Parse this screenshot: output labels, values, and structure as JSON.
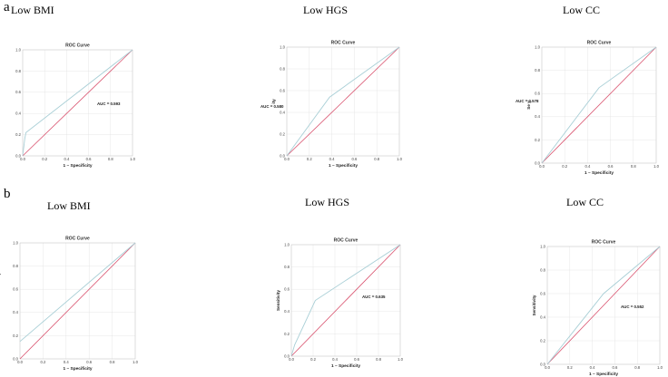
{
  "panel_labels": [
    "a",
    "b"
  ],
  "column_titles": [
    "Low BMI",
    "Low HGS",
    "Low CC"
  ],
  "colors": {
    "roc_line": "#a9cfd6",
    "reference_line": "#d9526e"
  },
  "chart_data": [
    {
      "type": "line",
      "row": "a",
      "col": 0,
      "title": "ROC Curve",
      "xlabel": "1 – Specificity",
      "ylabel": "",
      "auc_label": "AUC = 0.593",
      "xticks": [
        "0.0",
        "0.2",
        "0.4",
        "0.6",
        "0.8",
        "1.0"
      ],
      "yticks": [
        "0.0",
        "0.2",
        "0.4",
        "0.6",
        "0.8",
        "1.0"
      ],
      "xlim": [
        0,
        1
      ],
      "ylim": [
        0,
        1
      ],
      "grid": true,
      "roc": {
        "x": [
          0,
          0.02,
          0.03,
          1.0
        ],
        "y": [
          0,
          0.17,
          0.22,
          1.0
        ]
      },
      "reference": {
        "x": [
          0,
          1
        ],
        "y": [
          0,
          1
        ]
      }
    },
    {
      "type": "line",
      "row": "a",
      "col": 1,
      "title": "ROC Curve",
      "xlabel": "1 – Specificity",
      "ylabel": "ity",
      "auc_label": "AUC = 0.580",
      "xticks": [
        "0.0",
        "0.2",
        "0.4",
        "0.6",
        "0.8",
        "1.0"
      ],
      "yticks": [
        "0.0",
        "0.2",
        "0.4",
        "0.6",
        "0.8",
        "1.0"
      ],
      "xlim": [
        0,
        1
      ],
      "ylim": [
        0,
        1
      ],
      "grid": true,
      "roc": {
        "x": [
          0,
          0.38,
          1.0
        ],
        "y": [
          0,
          0.54,
          1.0
        ]
      },
      "reference": {
        "x": [
          0,
          1
        ],
        "y": [
          0,
          1
        ]
      }
    },
    {
      "type": "line",
      "row": "a",
      "col": 2,
      "title": "ROC Curve",
      "xlabel": "1 – Specificity",
      "ylabel": "Se   y",
      "auc_label": "AUC = 0.578",
      "xticks": [
        "0.0",
        "0.2",
        "0.4",
        "0.6",
        "0.8",
        "1.0"
      ],
      "yticks": [
        "0.0",
        "0.2",
        "0.4",
        "0.6",
        "0.8",
        "1.0"
      ],
      "xlim": [
        0,
        1
      ],
      "ylim": [
        0,
        1
      ],
      "grid": true,
      "roc": {
        "x": [
          0,
          0.5,
          1.0
        ],
        "y": [
          0,
          0.65,
          1.0
        ]
      },
      "reference": {
        "x": [
          0,
          1
        ],
        "y": [
          0,
          1
        ]
      }
    },
    {
      "type": "line",
      "row": "b",
      "col": 0,
      "title": "ROC Curve",
      "xlabel": "1 – Specificity",
      "ylabel": "",
      "auc_label": "= 0.577",
      "xticks": [
        "0.0",
        "0.2",
        "0.4",
        "0.6",
        "0.8",
        "1.0"
      ],
      "yticks": [
        "0.0",
        "0.2",
        "0.4",
        "0.6",
        "0.8",
        "1.0"
      ],
      "xlim": [
        0,
        1
      ],
      "ylim": [
        0,
        1
      ],
      "grid": true,
      "roc": {
        "x": [
          0,
          1.0
        ],
        "y": [
          0.15,
          1.0
        ]
      },
      "reference": {
        "x": [
          0,
          1
        ],
        "y": [
          0,
          1
        ]
      }
    },
    {
      "type": "line",
      "row": "b",
      "col": 1,
      "title": "ROC Curve",
      "xlabel": "1 – Specificity",
      "ylabel": "Sensitivity",
      "auc_label": "AUC = 0.635",
      "xticks": [
        "0.0",
        "0.2",
        "0.4",
        "0.6",
        "0.8",
        "1.0"
      ],
      "yticks": [
        "0.0",
        "0.2",
        "0.4",
        "0.6",
        "0.8",
        "1.0"
      ],
      "xlim": [
        0,
        1
      ],
      "ylim": [
        0,
        1
      ],
      "grid": true,
      "roc": {
        "x": [
          0,
          0.03,
          0.22,
          1.0
        ],
        "y": [
          0,
          0.1,
          0.5,
          1.0
        ]
      },
      "reference": {
        "x": [
          0,
          1
        ],
        "y": [
          0,
          1
        ]
      }
    },
    {
      "type": "line",
      "row": "b",
      "col": 2,
      "title": "ROC Curve",
      "xlabel": "1 – Specificity",
      "ylabel": "Sensitivity",
      "auc_label": "AUC = 0.552",
      "xticks": [
        "0.0",
        "0.2",
        "0.4",
        "0.6",
        "0.8",
        "1.0"
      ],
      "yticks": [
        "0.0",
        "0.2",
        "0.4",
        "0.6",
        "0.8",
        "1.0"
      ],
      "xlim": [
        0,
        1
      ],
      "ylim": [
        0,
        1
      ],
      "grid": true,
      "roc": {
        "x": [
          0,
          0.5,
          1.0
        ],
        "y": [
          0,
          0.6,
          1.0
        ]
      },
      "reference": {
        "x": [
          0,
          1
        ],
        "y": [
          0,
          1
        ]
      }
    }
  ]
}
